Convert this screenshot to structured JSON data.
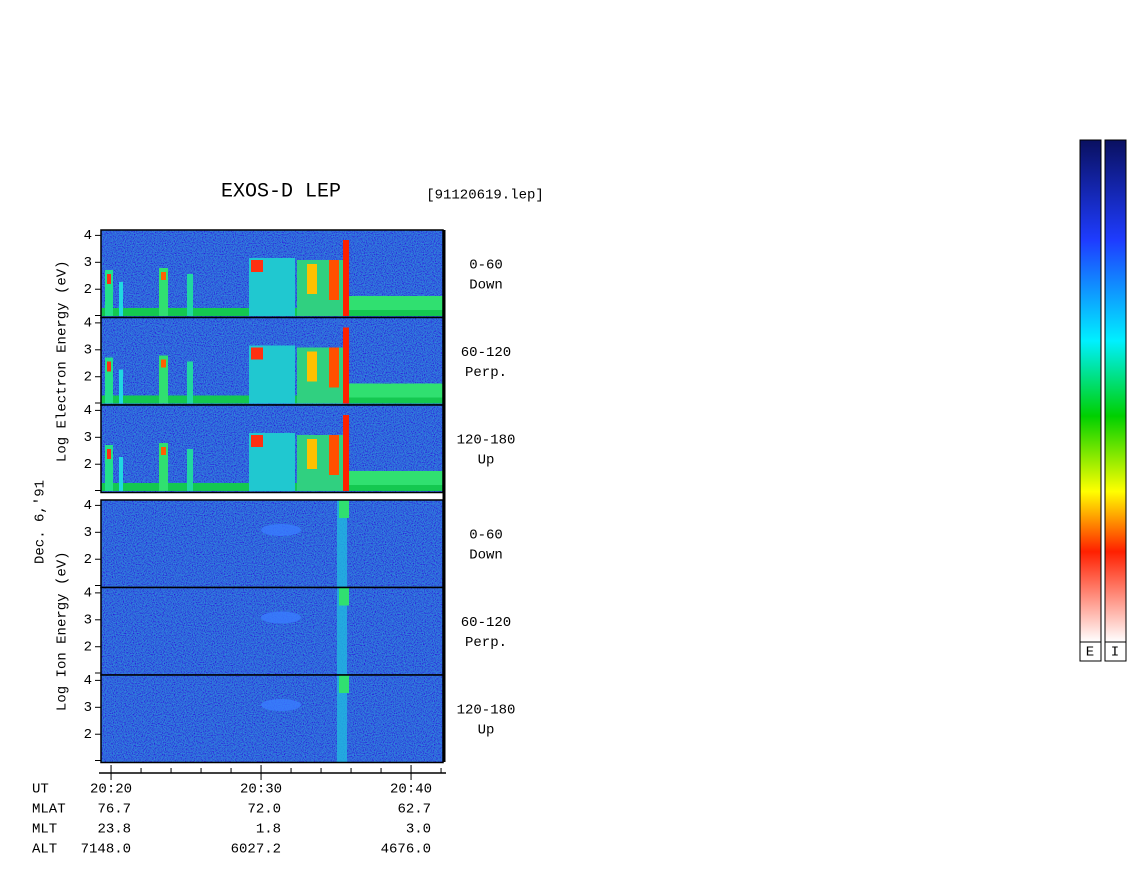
{
  "chart_data": {
    "type": "spectrogram",
    "title": "EXOS-D LEP",
    "subtitle": "[91120619.lep]",
    "date_label": "Dec. 6,'91",
    "groups": [
      {
        "ylabel": "Log  Electron  Energy (eV)",
        "panels": [
          {
            "angle": "0-60",
            "direction": "Down"
          },
          {
            "angle": "60-120",
            "direction": "Perp."
          },
          {
            "angle": "120-180",
            "direction": "Up"
          }
        ]
      },
      {
        "ylabel": "Log  Ion  Energy (eV)",
        "panels": [
          {
            "angle": "0-60",
            "direction": "Down"
          },
          {
            "angle": "60-120",
            "direction": "Perp."
          },
          {
            "angle": "120-180",
            "direction": "Up"
          }
        ]
      }
    ],
    "ylim": [
      0.95,
      4.2
    ],
    "yticks": [
      2,
      3,
      4
    ],
    "xlim": [
      1219.33,
      1242.13
    ],
    "xticks": [
      {
        "value": 1220,
        "label": "20:20"
      },
      {
        "value": 1230,
        "label": "20:30"
      },
      {
        "value": 1240,
        "label": "20:40"
      }
    ],
    "xminorticks": [
      1222,
      1224,
      1226,
      1228,
      1232,
      1234,
      1236,
      1238,
      1242
    ],
    "time_label": "UT",
    "ephemeris": [
      {
        "name": "MLAT",
        "values": [
          "76.7",
          "72.0",
          "62.7"
        ]
      },
      {
        "name": "MLT",
        "values": [
          "23.8",
          "1.8",
          "3.0"
        ]
      },
      {
        "name": "ALT",
        "values": [
          "7148.0",
          "6027.2",
          "4676.0"
        ]
      }
    ],
    "colorbars": [
      "E",
      "I"
    ]
  }
}
